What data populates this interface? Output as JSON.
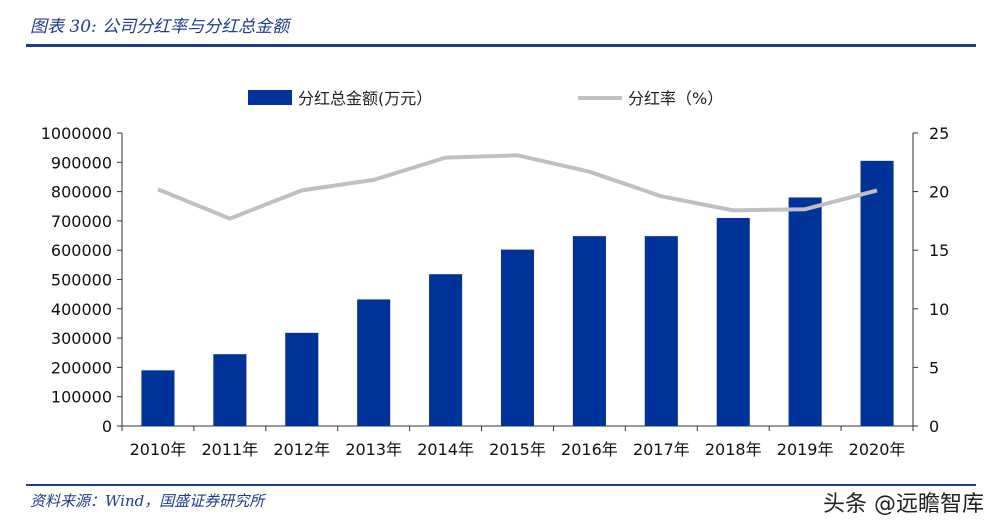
{
  "figure_title": "图表 30:  公司分红率与分红总金额",
  "source_note": "资料来源：Wind，国盛证券研究所",
  "watermark": "头条 @远瞻智库",
  "colors": {
    "bar": "#003399",
    "line": "#c0c0c0",
    "accent": "#1f3c88"
  },
  "chart_data": {
    "type": "bar",
    "categories": [
      "2010年",
      "2011年",
      "2012年",
      "2013年",
      "2014年",
      "2015年",
      "2016年",
      "2017年",
      "2018年",
      "2019年",
      "2020年"
    ],
    "series": [
      {
        "name": "分红总金额(万元）",
        "type": "bar",
        "axis": "left",
        "values": [
          190000,
          245000,
          318000,
          432000,
          518000,
          602000,
          648000,
          648000,
          710000,
          780000,
          905000
        ]
      },
      {
        "name": "分红率（%）",
        "type": "line",
        "axis": "right",
        "values": [
          20.2,
          17.7,
          20.1,
          21.0,
          22.9,
          23.1,
          21.7,
          19.6,
          18.4,
          18.5,
          20.1
        ]
      }
    ],
    "y_left": {
      "min": 0,
      "max": 1000000,
      "step": 100000
    },
    "y_right": {
      "min": 0,
      "max": 25,
      "step": 5
    },
    "legend_position": "top"
  }
}
